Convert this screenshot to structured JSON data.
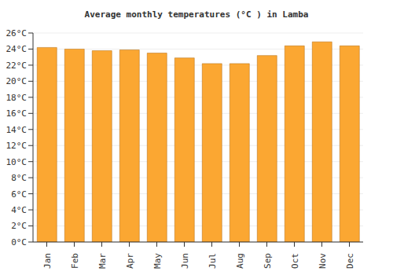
{
  "chart_data": {
    "type": "bar",
    "title": "Average monthly temperatures (°C ) in Lamba",
    "categories": [
      "Jan",
      "Feb",
      "Mar",
      "Apr",
      "May",
      "Jun",
      "Jul",
      "Aug",
      "Sep",
      "Oct",
      "Nov",
      "Dec"
    ],
    "values": [
      24.2,
      24.0,
      23.8,
      23.9,
      23.5,
      22.9,
      22.2,
      22.2,
      23.2,
      24.4,
      24.9,
      24.4
    ],
    "color": "#fba732",
    "ylim": [
      0,
      26
    ],
    "yticks": [
      {
        "value": 0,
        "label": "0°C"
      },
      {
        "value": 2,
        "label": "2°C"
      },
      {
        "value": 4,
        "label": "4°C"
      },
      {
        "value": 6,
        "label": "6°C"
      },
      {
        "value": 8,
        "label": "8°C"
      },
      {
        "value": 10,
        "label": "10°C"
      },
      {
        "value": 12,
        "label": "12°C"
      },
      {
        "value": 14,
        "label": "14°C"
      },
      {
        "value": 16,
        "label": "16°C"
      },
      {
        "value": 18,
        "label": "18°C"
      },
      {
        "value": 20,
        "label": "20°C"
      },
      {
        "value": 22,
        "label": "22°C"
      },
      {
        "value": 24,
        "label": "24°C"
      },
      {
        "value": 26,
        "label": "26°C"
      }
    ],
    "grid": true
  }
}
